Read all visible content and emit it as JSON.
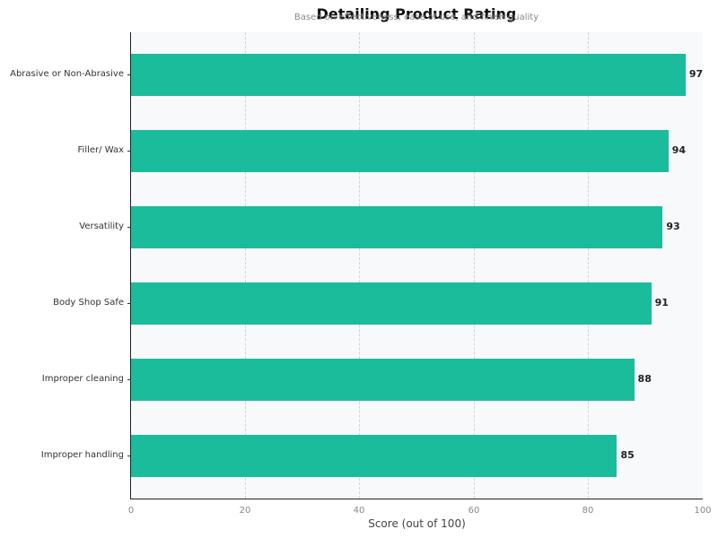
{
  "chart_data": {
    "type": "bar",
    "orientation": "horizontal",
    "title": "Detailing Product Rating",
    "subtitle": "Based on effectiveness, ease of use, and finish quality",
    "xlabel": "Score (out of 100)",
    "ylabel": "",
    "xlim": [
      0,
      100
    ],
    "xticks": [
      "0",
      "20",
      "40",
      "60",
      "80",
      "100"
    ],
    "grid": "vertical dashed",
    "bar_color": "#1abc9c",
    "categories": [
      "Abrasive or Non-Abrasive",
      "Filler/ Wax",
      "Versatility",
      "Body Shop Safe",
      "Improper cleaning",
      "Improper handling"
    ],
    "values": [
      97,
      94,
      93,
      91,
      88,
      85
    ],
    "value_labels": [
      "97",
      "94",
      "93",
      "91",
      "88",
      "85"
    ]
  }
}
